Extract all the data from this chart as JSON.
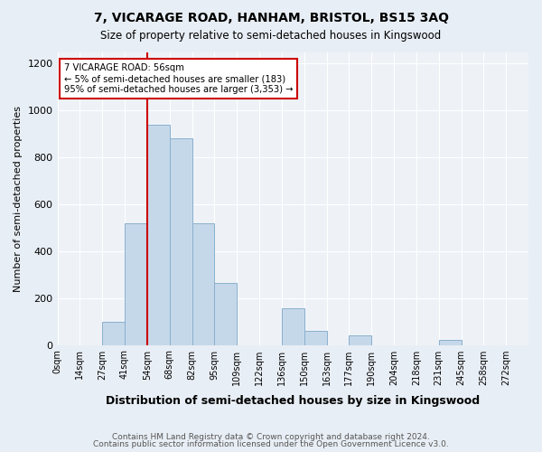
{
  "title": "7, VICARAGE ROAD, HANHAM, BRISTOL, BS15 3AQ",
  "subtitle": "Size of property relative to semi-detached houses in Kingswood",
  "xlabel": "Distribution of semi-detached houses by size in Kingswood",
  "ylabel": "Number of semi-detached properties",
  "footer_line1": "Contains HM Land Registry data © Crown copyright and database right 2024.",
  "footer_line2": "Contains public sector information licensed under the Open Government Licence v3.0.",
  "bin_labels": [
    "0sqm",
    "14sqm",
    "27sqm",
    "41sqm",
    "54sqm",
    "68sqm",
    "82sqm",
    "95sqm",
    "109sqm",
    "122sqm",
    "136sqm",
    "150sqm",
    "163sqm",
    "177sqm",
    "190sqm",
    "204sqm",
    "218sqm",
    "231sqm",
    "245sqm",
    "258sqm",
    "272sqm"
  ],
  "bar_heights": [
    0,
    0,
    100,
    520,
    940,
    880,
    520,
    265,
    0,
    0,
    155,
    60,
    0,
    40,
    0,
    0,
    0,
    20,
    0,
    0
  ],
  "vline_bin_index": 4,
  "property_label": "7 VICARAGE ROAD: 56sqm",
  "pct_smaller": 5,
  "n_smaller": 183,
  "pct_larger": 95,
  "n_larger": 3353,
  "bar_color": "#c5d8ea",
  "bar_edge_color": "#8ab0cc",
  "vline_color": "#cc0000",
  "annotation_box_edge": "#cc0000",
  "ylim": [
    0,
    1250
  ],
  "yticks": [
    0,
    200,
    400,
    600,
    800,
    1000,
    1200
  ],
  "bg_color": "#e8eef5",
  "plot_bg_color": "#eef2f7"
}
